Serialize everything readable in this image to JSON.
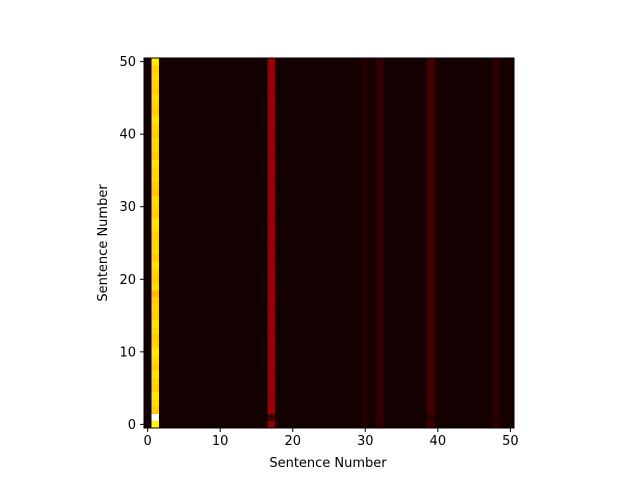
{
  "chart_data": {
    "type": "heatmap",
    "title": "",
    "xlabel": "Sentence Number",
    "ylabel": "Sentence Number",
    "xlim": [
      -0.5,
      50.5
    ],
    "ylim": [
      -0.5,
      50.5
    ],
    "xticks": [
      0,
      10,
      20,
      30,
      40,
      50
    ],
    "yticks": [
      0,
      10,
      20,
      30,
      40,
      50
    ],
    "grid": false,
    "colormap": "hot",
    "background_value": 0.03,
    "columns": [
      {
        "x": 1,
        "values": [
          0.72,
          1.0,
          0.66,
          0.68,
          0.7,
          0.66,
          0.67,
          0.69,
          0.66,
          0.68,
          0.7,
          0.67,
          0.66,
          0.68,
          0.69,
          0.66,
          0.67,
          0.66,
          0.63,
          0.68,
          0.66,
          0.67,
          0.69,
          0.66,
          0.68,
          0.67,
          0.66,
          0.68,
          0.69,
          0.66,
          0.67,
          0.68,
          0.65,
          0.66,
          0.68,
          0.67,
          0.69,
          0.66,
          0.67,
          0.68,
          0.66,
          0.67,
          0.69,
          0.66,
          0.67,
          0.68,
          0.66,
          0.67,
          0.68,
          0.66,
          0.7
        ]
      },
      {
        "x": 17,
        "values": [
          0.2,
          0.08,
          0.22,
          0.22,
          0.21,
          0.22,
          0.22,
          0.21,
          0.22,
          0.22,
          0.21,
          0.22,
          0.22,
          0.21,
          0.22,
          0.22,
          0.21,
          0.22,
          0.22,
          0.21,
          0.22,
          0.22,
          0.21,
          0.22,
          0.22,
          0.21,
          0.22,
          0.22,
          0.21,
          0.22,
          0.22,
          0.21,
          0.22,
          0.22,
          0.21,
          0.22,
          0.22,
          0.21,
          0.22,
          0.22,
          0.21,
          0.22,
          0.22,
          0.21,
          0.22,
          0.22,
          0.21,
          0.22,
          0.22,
          0.21,
          0.22
        ]
      },
      {
        "x": 30,
        "values": [
          0.055,
          0.055,
          0.055,
          0.055,
          0.055,
          0.055,
          0.055,
          0.055,
          0.055,
          0.055,
          0.055,
          0.055,
          0.055,
          0.055,
          0.055,
          0.055,
          0.055,
          0.055,
          0.055,
          0.055,
          0.055,
          0.055,
          0.055,
          0.055,
          0.055,
          0.055,
          0.055,
          0.055,
          0.055,
          0.055,
          0.055,
          0.055,
          0.055,
          0.055,
          0.055,
          0.055,
          0.055,
          0.055,
          0.055,
          0.055,
          0.055,
          0.055,
          0.055,
          0.055,
          0.055,
          0.055,
          0.055,
          0.055,
          0.055,
          0.055,
          0.055
        ]
      },
      {
        "x": 32,
        "values": [
          0.07,
          0.07,
          0.07,
          0.07,
          0.07,
          0.07,
          0.07,
          0.07,
          0.07,
          0.07,
          0.07,
          0.07,
          0.07,
          0.07,
          0.07,
          0.07,
          0.07,
          0.07,
          0.07,
          0.07,
          0.07,
          0.07,
          0.07,
          0.07,
          0.07,
          0.07,
          0.07,
          0.07,
          0.07,
          0.07,
          0.07,
          0.07,
          0.07,
          0.07,
          0.07,
          0.07,
          0.07,
          0.07,
          0.07,
          0.07,
          0.07,
          0.07,
          0.07,
          0.07,
          0.07,
          0.07,
          0.07,
          0.07,
          0.07,
          0.07,
          0.07
        ]
      },
      {
        "x": 39,
        "values": [
          0.09,
          0.06,
          0.1,
          0.1,
          0.1,
          0.1,
          0.1,
          0.1,
          0.1,
          0.1,
          0.1,
          0.1,
          0.1,
          0.1,
          0.1,
          0.1,
          0.1,
          0.1,
          0.1,
          0.1,
          0.1,
          0.1,
          0.1,
          0.1,
          0.1,
          0.1,
          0.1,
          0.1,
          0.1,
          0.1,
          0.1,
          0.1,
          0.1,
          0.1,
          0.1,
          0.1,
          0.1,
          0.1,
          0.1,
          0.1,
          0.1,
          0.1,
          0.1,
          0.1,
          0.1,
          0.1,
          0.1,
          0.1,
          0.1,
          0.1,
          0.1
        ]
      },
      {
        "x": 48,
        "values": [
          0.065,
          0.05,
          0.065,
          0.065,
          0.065,
          0.065,
          0.065,
          0.065,
          0.065,
          0.065,
          0.065,
          0.065,
          0.065,
          0.065,
          0.065,
          0.065,
          0.065,
          0.065,
          0.065,
          0.065,
          0.065,
          0.065,
          0.065,
          0.065,
          0.065,
          0.065,
          0.065,
          0.065,
          0.065,
          0.065,
          0.065,
          0.065,
          0.065,
          0.065,
          0.065,
          0.065,
          0.065,
          0.065,
          0.065,
          0.065,
          0.065,
          0.065,
          0.065,
          0.065,
          0.065,
          0.065,
          0.065,
          0.065,
          0.065,
          0.065,
          0.065
        ]
      }
    ]
  }
}
